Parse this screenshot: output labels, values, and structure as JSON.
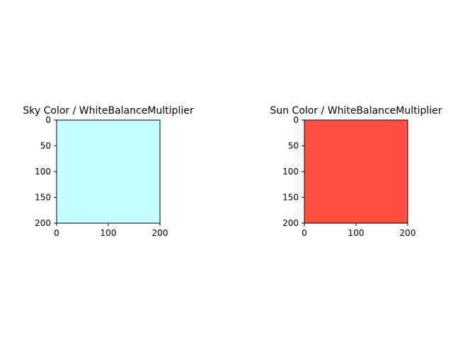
{
  "chart_data": [
    {
      "type": "heatmap",
      "title": "Sky Color / WhiteBalanceMultiplier",
      "fill_color": "#c3ffff",
      "xlim": [
        0,
        200
      ],
      "ylim": [
        200,
        0
      ],
      "xticks": [
        0,
        100,
        200
      ],
      "yticks": [
        0,
        50,
        100,
        150,
        200
      ],
      "xtick_labels": [
        "0",
        "100",
        "200"
      ],
      "ytick_labels": [
        "0",
        "50",
        "100",
        "150",
        "200"
      ],
      "grid": false
    },
    {
      "type": "heatmap",
      "title": "Sun Color / WhiteBalanceMultiplier",
      "fill_color": "#ff4f43",
      "xlim": [
        0,
        200
      ],
      "ylim": [
        200,
        0
      ],
      "xticks": [
        0,
        100,
        200
      ],
      "yticks": [
        0,
        50,
        100,
        150,
        200
      ],
      "xtick_labels": [
        "0",
        "100",
        "200"
      ],
      "ytick_labels": [
        "0",
        "50",
        "100",
        "150",
        "200"
      ],
      "grid": false
    }
  ]
}
